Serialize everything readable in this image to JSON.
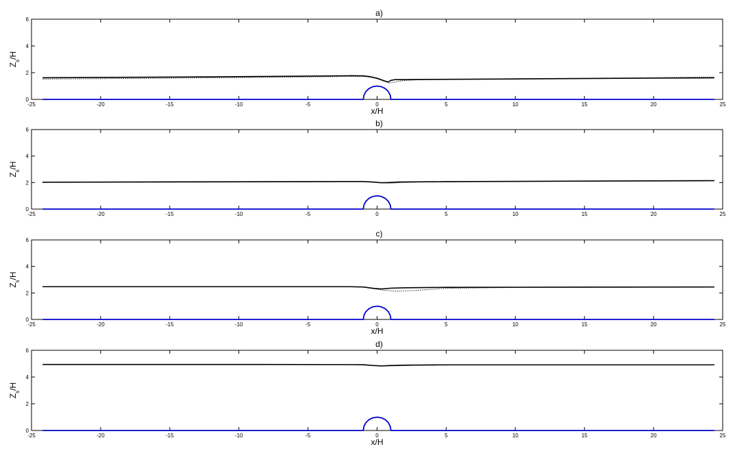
{
  "chart_data": [
    {
      "type": "line",
      "title": "a)",
      "xlabel": "x/H",
      "ylabel": "Z_s/H",
      "xlim": [
        -25,
        25
      ],
      "ylim": [
        0,
        6
      ],
      "xticks": [
        -25,
        -20,
        -15,
        -10,
        -5,
        0,
        5,
        10,
        15,
        20,
        25
      ],
      "yticks": [
        0,
        2,
        4,
        6
      ],
      "grid": false,
      "legend": "none",
      "series": [
        {
          "style": "solid",
          "color": "#000000",
          "points": [
            [
              -24.2,
              1.62
            ],
            [
              -15,
              1.67
            ],
            [
              -5,
              1.74
            ],
            [
              -2,
              1.77
            ],
            [
              -1,
              1.76
            ],
            [
              -0.5,
              1.7
            ],
            [
              0,
              1.58
            ],
            [
              0.5,
              1.4
            ],
            [
              0.8,
              1.3
            ],
            [
              1.0,
              1.42
            ],
            [
              1.3,
              1.48
            ],
            [
              3,
              1.49
            ],
            [
              10,
              1.53
            ],
            [
              20,
              1.59
            ],
            [
              24.4,
              1.61
            ]
          ]
        },
        {
          "style": "dotted",
          "color": "#000000",
          "points": [
            [
              -24.2,
              1.52
            ],
            [
              -15,
              1.59
            ],
            [
              -5,
              1.68
            ],
            [
              -2,
              1.72
            ],
            [
              -1,
              1.72
            ],
            [
              -0.5,
              1.66
            ],
            [
              0,
              1.55
            ],
            [
              0.5,
              1.36
            ],
            [
              0.9,
              1.22
            ],
            [
              1.3,
              1.3
            ],
            [
              1.8,
              1.4
            ],
            [
              3,
              1.47
            ],
            [
              10,
              1.55
            ],
            [
              20,
              1.63
            ],
            [
              24.4,
              1.68
            ]
          ]
        },
        {
          "style": "solid",
          "color": "#0000cc",
          "points": [
            [
              -24.2,
              0
            ],
            [
              -1,
              0
            ],
            [
              -0.95,
              0.31
            ],
            [
              -0.81,
              0.59
            ],
            [
              -0.59,
              0.81
            ],
            [
              -0.31,
              0.95
            ],
            [
              0,
              1.0
            ],
            [
              0.31,
              0.95
            ],
            [
              0.59,
              0.81
            ],
            [
              0.81,
              0.59
            ],
            [
              0.95,
              0.31
            ],
            [
              1,
              0
            ],
            [
              24.4,
              0
            ]
          ]
        }
      ]
    },
    {
      "type": "line",
      "title": "b)",
      "xlabel": "",
      "ylabel": "Z_s/H",
      "xlim": [
        -25,
        25
      ],
      "ylim": [
        0,
        6
      ],
      "xticks": [
        -25,
        -20,
        -15,
        -10,
        -5,
        0,
        5,
        10,
        15,
        20,
        25
      ],
      "yticks": [
        0,
        2,
        4,
        6
      ],
      "grid": false,
      "legend": "none",
      "series": [
        {
          "style": "solid",
          "color": "#000000",
          "points": [
            [
              -24.2,
              2.03
            ],
            [
              -10,
              2.06
            ],
            [
              -2,
              2.08
            ],
            [
              -1,
              2.08
            ],
            [
              -0.3,
              2.04
            ],
            [
              0.3,
              1.99
            ],
            [
              0.8,
              2.0
            ],
            [
              1.5,
              2.04
            ],
            [
              5,
              2.07
            ],
            [
              15,
              2.11
            ],
            [
              24.4,
              2.14
            ]
          ]
        },
        {
          "style": "dotted",
          "color": "#000000",
          "points": [
            [
              -24.2,
              2.0
            ],
            [
              -10,
              2.04
            ],
            [
              -2,
              2.07
            ],
            [
              -1,
              2.07
            ],
            [
              -0.2,
              2.02
            ],
            [
              0.4,
              1.97
            ],
            [
              1.0,
              1.95
            ],
            [
              1.8,
              2.0
            ],
            [
              3,
              2.04
            ],
            [
              10,
              2.09
            ],
            [
              24.4,
              2.17
            ]
          ]
        },
        {
          "style": "solid",
          "color": "#0000cc",
          "points": [
            [
              -24.2,
              0
            ],
            [
              -1,
              0
            ],
            [
              -0.95,
              0.31
            ],
            [
              -0.81,
              0.59
            ],
            [
              -0.59,
              0.81
            ],
            [
              -0.31,
              0.95
            ],
            [
              0,
              1.0
            ],
            [
              0.31,
              0.95
            ],
            [
              0.59,
              0.81
            ],
            [
              0.81,
              0.59
            ],
            [
              0.95,
              0.31
            ],
            [
              1,
              0
            ],
            [
              24.4,
              0
            ]
          ]
        }
      ]
    },
    {
      "type": "line",
      "title": "c)",
      "xlabel": "x/H",
      "ylabel": "Z_s/H",
      "xlim": [
        -25,
        25
      ],
      "ylim": [
        0,
        6
      ],
      "xticks": [
        -25,
        -20,
        -15,
        -10,
        -5,
        0,
        5,
        10,
        15,
        20,
        25
      ],
      "yticks": [
        0,
        2,
        4,
        6
      ],
      "grid": false,
      "legend": "none",
      "series": [
        {
          "style": "solid",
          "color": "#000000",
          "points": [
            [
              -24.2,
              2.47
            ],
            [
              -10,
              2.47
            ],
            [
              -2,
              2.47
            ],
            [
              -1,
              2.45
            ],
            [
              -0.3,
              2.35
            ],
            [
              0.3,
              2.3
            ],
            [
              1.0,
              2.36
            ],
            [
              2,
              2.39
            ],
            [
              5,
              2.42
            ],
            [
              15,
              2.44
            ],
            [
              24.4,
              2.45
            ]
          ]
        },
        {
          "style": "dotted",
          "color": "#000000",
          "points": [
            [
              -24.2,
              2.46
            ],
            [
              -10,
              2.46
            ],
            [
              -2,
              2.46
            ],
            [
              -1,
              2.43
            ],
            [
              -0.3,
              2.33
            ],
            [
              0.5,
              2.2
            ],
            [
              1.5,
              2.13
            ],
            [
              3,
              2.2
            ],
            [
              5,
              2.35
            ],
            [
              10,
              2.41
            ],
            [
              24.4,
              2.44
            ]
          ]
        },
        {
          "style": "solid",
          "color": "#0000cc",
          "points": [
            [
              -24.2,
              0
            ],
            [
              -1,
              0
            ],
            [
              -0.95,
              0.31
            ],
            [
              -0.81,
              0.59
            ],
            [
              -0.59,
              0.81
            ],
            [
              -0.31,
              0.95
            ],
            [
              0,
              1.0
            ],
            [
              0.31,
              0.95
            ],
            [
              0.59,
              0.81
            ],
            [
              0.81,
              0.59
            ],
            [
              0.95,
              0.31
            ],
            [
              1,
              0
            ],
            [
              24.4,
              0
            ]
          ]
        }
      ]
    },
    {
      "type": "line",
      "title": "d)",
      "xlabel": "x/H",
      "ylabel": "Z_s/H",
      "xlim": [
        -25,
        25
      ],
      "ylim": [
        0,
        6
      ],
      "xticks": [
        -25,
        -20,
        -15,
        -10,
        -5,
        0,
        5,
        10,
        15,
        20,
        25
      ],
      "yticks": [
        0,
        2,
        4,
        6
      ],
      "grid": false,
      "legend": "none",
      "series": [
        {
          "style": "solid",
          "color": "#000000",
          "points": [
            [
              -24.2,
              4.94
            ],
            [
              -10,
              4.94
            ],
            [
              -2,
              4.93
            ],
            [
              -1,
              4.92
            ],
            [
              -0.3,
              4.86
            ],
            [
              0.3,
              4.83
            ],
            [
              1.0,
              4.86
            ],
            [
              2,
              4.89
            ],
            [
              5,
              4.91
            ],
            [
              15,
              4.91
            ],
            [
              24.4,
              4.91
            ]
          ]
        },
        {
          "style": "dotted",
          "color": "#000000",
          "points": [
            [
              -24.2,
              4.93
            ],
            [
              -10,
              4.93
            ],
            [
              -2,
              4.92
            ],
            [
              -1,
              4.91
            ],
            [
              -0.3,
              4.86
            ],
            [
              0.5,
              4.82
            ],
            [
              1.5,
              4.84
            ],
            [
              3,
              4.88
            ],
            [
              6,
              4.9
            ],
            [
              15,
              4.91
            ],
            [
              24.4,
              4.91
            ]
          ]
        },
        {
          "style": "solid",
          "color": "#0000cc",
          "points": [
            [
              -24.2,
              0
            ],
            [
              -1,
              0
            ],
            [
              -0.95,
              0.31
            ],
            [
              -0.81,
              0.59
            ],
            [
              -0.59,
              0.81
            ],
            [
              -0.31,
              0.95
            ],
            [
              0,
              1.0
            ],
            [
              0.31,
              0.95
            ],
            [
              0.59,
              0.81
            ],
            [
              0.81,
              0.59
            ],
            [
              0.95,
              0.31
            ],
            [
              1,
              0
            ],
            [
              24.4,
              0
            ]
          ]
        }
      ]
    }
  ]
}
